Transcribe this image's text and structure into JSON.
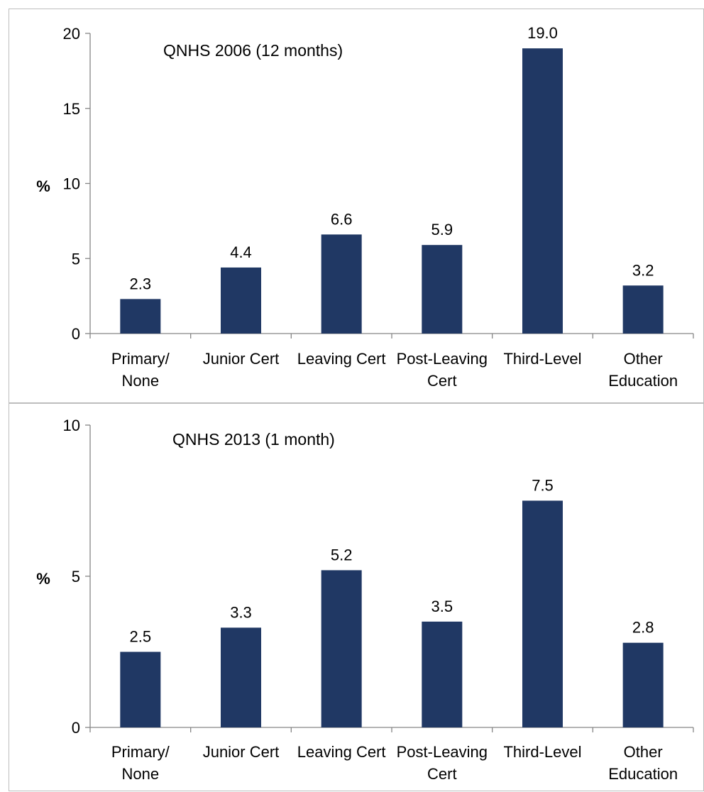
{
  "chart_data": [
    {
      "type": "bar",
      "title": "QNHS 2006 (12 months)",
      "ylabel": "%",
      "xlabel": "",
      "ylim": [
        0,
        20
      ],
      "yticks": [
        "0",
        "5",
        "10",
        "15",
        "20"
      ],
      "categories": [
        [
          "Primary/",
          "None"
        ],
        [
          "Junior Cert"
        ],
        [
          "Leaving Cert"
        ],
        [
          "Post-Leaving",
          "Cert"
        ],
        [
          "Third-Level"
        ],
        [
          "Other",
          "Education"
        ]
      ],
      "values": [
        2.3,
        4.4,
        6.6,
        5.9,
        19.0,
        3.2
      ],
      "data_labels": [
        "2.3",
        "4.4",
        "6.6",
        "5.9",
        "19.0",
        "3.2"
      ],
      "bar_color": "#203864",
      "grid": false,
      "legend": "none"
    },
    {
      "type": "bar",
      "title": "QNHS 2013 (1 month)",
      "ylabel": "%",
      "xlabel": "",
      "ylim": [
        0,
        10
      ],
      "yticks": [
        "0",
        "5",
        "10"
      ],
      "categories": [
        [
          "Primary/",
          "None"
        ],
        [
          "Junior Cert"
        ],
        [
          "Leaving Cert"
        ],
        [
          "Post-Leaving",
          "Cert"
        ],
        [
          "Third-Level"
        ],
        [
          "Other",
          "Education"
        ]
      ],
      "values": [
        2.5,
        3.3,
        5.2,
        3.5,
        7.5,
        2.8
      ],
      "data_labels": [
        "2.5",
        "3.3",
        "5.2",
        "3.5",
        "7.5",
        "2.8"
      ],
      "bar_color": "#203864",
      "grid": false,
      "legend": "none"
    }
  ]
}
